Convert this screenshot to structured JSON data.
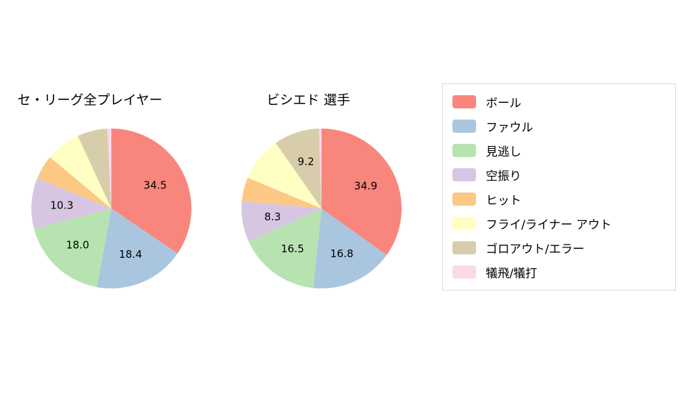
{
  "page": {
    "background": "#ffffff"
  },
  "colors": [
    "#f8867d",
    "#a9c6de",
    "#b7e3b1",
    "#d7c6e2",
    "#fcc884",
    "#ffffc4",
    "#d8cdab",
    "#fcd8eb"
  ],
  "chart_data": [
    {
      "type": "pie",
      "title": "セ・リーグ全プレイヤー",
      "labels": [
        "ボール",
        "ファウル",
        "見逃し",
        "空振り",
        "ヒット",
        "フライ/ライナー アウト",
        "ゴロアウト/エラー",
        "犠飛/犠打"
      ],
      "values": [
        34.5,
        18.4,
        18.0,
        10.3,
        4.9,
        7.0,
        6.1,
        0.8
      ],
      "value_labels": [
        "34.5",
        "18.4",
        "18.0",
        "10.3",
        "",
        "",
        "",
        ""
      ],
      "start_angle": "top",
      "direction": "clockwise",
      "label_radius_fraction": 0.62,
      "legend_position": "right"
    },
    {
      "type": "pie",
      "title": "ビシエド  選手",
      "labels": [
        "ボール",
        "ファウル",
        "見逃し",
        "空振り",
        "ヒット",
        "フライ/ライナー アウト",
        "ゴロアウト/エラー",
        "犠飛/犠打"
      ],
      "values": [
        34.9,
        16.8,
        16.5,
        8.3,
        4.8,
        9.0,
        9.2,
        0.5
      ],
      "value_labels": [
        "34.9",
        "16.8",
        "16.5",
        "8.3",
        "",
        "",
        "9.2",
        ""
      ],
      "start_angle": "top",
      "direction": "clockwise",
      "label_radius_fraction": 0.62,
      "legend_position": "right"
    }
  ],
  "legend": {
    "items": [
      {
        "label": "ボール",
        "color": "#f8867d"
      },
      {
        "label": "ファウル",
        "color": "#a9c6de"
      },
      {
        "label": "見逃し",
        "color": "#b7e3b1"
      },
      {
        "label": "空振り",
        "color": "#d7c6e2"
      },
      {
        "label": "ヒット",
        "color": "#fcc884"
      },
      {
        "label": "フライ/ライナー アウト",
        "color": "#ffffc4"
      },
      {
        "label": "ゴロアウト/エラー",
        "color": "#d8cdab"
      },
      {
        "label": "犠飛/犠打",
        "color": "#fcd8eb"
      }
    ]
  }
}
